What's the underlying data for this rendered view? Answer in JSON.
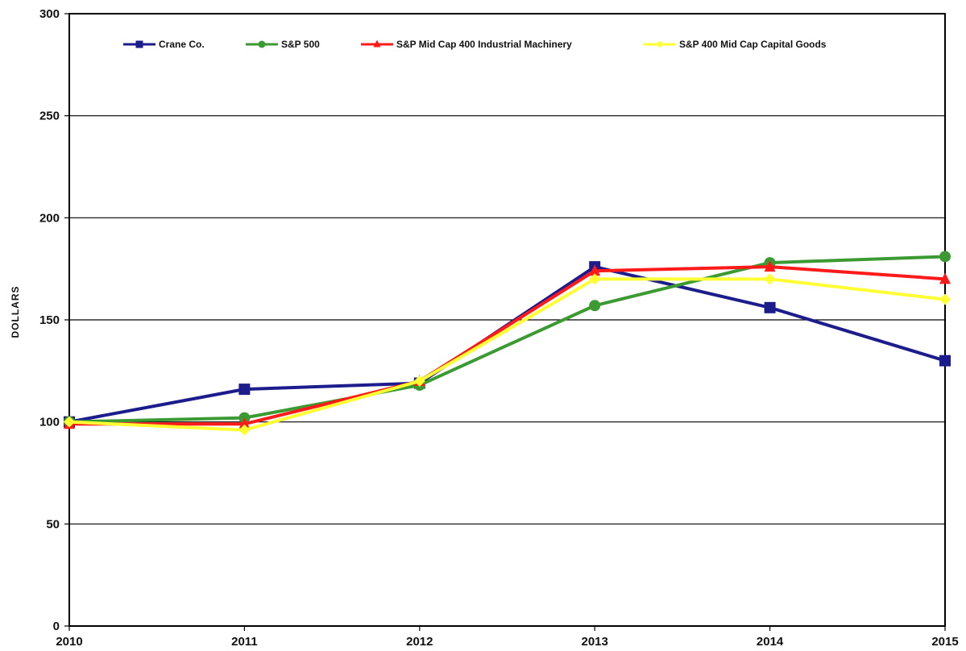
{
  "chart_data": {
    "type": "line",
    "title": "",
    "xlabel": "",
    "ylabel": "DOLLARS",
    "categories": [
      "2010",
      "2011",
      "2012",
      "2013",
      "2014",
      "2015"
    ],
    "ylim": [
      0,
      300
    ],
    "yticks": [
      0,
      50,
      100,
      150,
      200,
      250,
      300
    ],
    "grid": true,
    "legend_position": "top",
    "series": [
      {
        "name": "Crane Co.",
        "color": "#1c1c8c",
        "marker": "square",
        "values": [
          100,
          116,
          119,
          176,
          156,
          130
        ]
      },
      {
        "name": "S&P 500",
        "color": "#3c9a32",
        "marker": "circle",
        "values": [
          100,
          102,
          118,
          157,
          178,
          181
        ]
      },
      {
        "name": "S&P Mid Cap 400 Industrial Machinery",
        "color": "#ff1a1a",
        "marker": "triangle",
        "values": [
          99,
          99,
          120,
          174,
          176,
          170
        ]
      },
      {
        "name": "S&P 400 Mid Cap Capital Goods",
        "color": "#ffff33",
        "marker": "diamond",
        "values": [
          100,
          96,
          120,
          170,
          170,
          160
        ]
      }
    ]
  }
}
